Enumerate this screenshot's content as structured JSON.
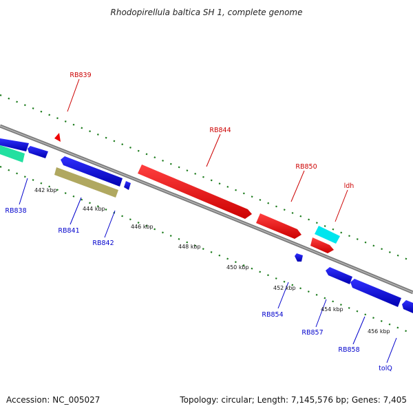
{
  "title": "Rhodopirellula baltica SH 1, complete genome",
  "footer": {
    "accession": "Accession: NC_005027",
    "summary": "Topology: circular; Length: 7,145,576 bp; Genes: 7,405"
  },
  "colors": {
    "backbone": "#8c8c8c",
    "ticks": "#1a7a1a",
    "forward_label": "#cc0000",
    "reverse_label": "#0000cc"
  },
  "ruler_ticks": [
    "442 kbp",
    "444 kbp",
    "446 kbp",
    "448 kbp",
    "450 kbp",
    "452 kbp",
    "454 kbp",
    "456 kbp"
  ],
  "genes": [
    {
      "name": "RB839",
      "strand": "forward",
      "color": "#ee0000"
    },
    {
      "name": "RB844",
      "strand": "forward",
      "color": "#ee0000"
    },
    {
      "name": "RB850",
      "strand": "forward",
      "color": "#ee0000"
    },
    {
      "name": "ldh",
      "strand": "forward",
      "color": "#00e5ee"
    },
    {
      "name": "RB838",
      "strand": "reverse",
      "color": "#0000dd"
    },
    {
      "name": "RB841",
      "strand": "reverse",
      "color": "#0000dd"
    },
    {
      "name": "RB842",
      "strand": "reverse",
      "color": "#0000dd"
    },
    {
      "name": "RB854",
      "strand": "reverse",
      "color": "#0000dd"
    },
    {
      "name": "RB857",
      "strand": "reverse",
      "color": "#0000dd"
    },
    {
      "name": "RB858",
      "strand": "reverse",
      "color": "#0000dd"
    },
    {
      "name": "tolQ",
      "strand": "reverse",
      "color": "#0000dd"
    }
  ],
  "other_features": {
    "rna_color": "#22e0a0",
    "pseudo_color": "#b0a860"
  }
}
